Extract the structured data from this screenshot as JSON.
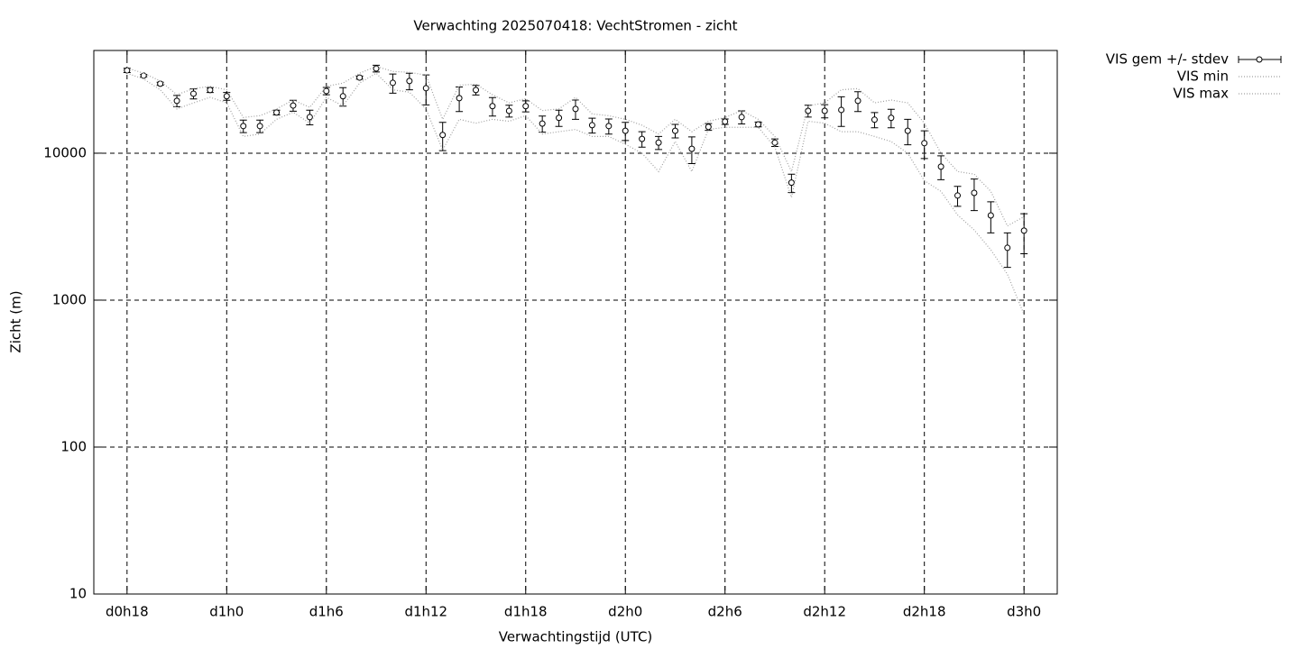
{
  "chart_data": {
    "type": "errorbar",
    "title": "Verwachting 2025070418: VechtStromen - zicht",
    "xlabel": "Verwachtingstijd (UTC)",
    "ylabel": "Zicht (m)",
    "log_y": true,
    "grid": true,
    "legend": "outside-top-right",
    "x": [
      18,
      19,
      20,
      21,
      22,
      23,
      24,
      25,
      26,
      27,
      28,
      29,
      30,
      31,
      32,
      33,
      34,
      35,
      36,
      37,
      38,
      39,
      40,
      41,
      42,
      43,
      44,
      45,
      46,
      47,
      48,
      49,
      50,
      51,
      52,
      53,
      54,
      55,
      56,
      57,
      58,
      59,
      60,
      61,
      62,
      63,
      64,
      65,
      66,
      67,
      68,
      69,
      70,
      71,
      72
    ],
    "xlim": [
      16,
      74
    ],
    "xticks": [
      {
        "value": 18,
        "label": "d0h18"
      },
      {
        "value": 24,
        "label": "d1h0"
      },
      {
        "value": 30,
        "label": "d1h6"
      },
      {
        "value": 36,
        "label": "d1h12"
      },
      {
        "value": 42,
        "label": "d1h18"
      },
      {
        "value": 48,
        "label": "d2h0"
      },
      {
        "value": 54,
        "label": "d2h6"
      },
      {
        "value": 60,
        "label": "d2h12"
      },
      {
        "value": 66,
        "label": "d2h18"
      },
      {
        "value": 72,
        "label": "d3h0"
      }
    ],
    "ylim": [
      10,
      50000
    ],
    "yticks": [
      10,
      100,
      1000,
      10000
    ],
    "series": [
      {
        "name": "VIS gem +/- stdev",
        "color": "#000000",
        "style": "errorbar",
        "values": [
          36600,
          33700,
          29700,
          22700,
          25400,
          26900,
          24400,
          15300,
          15300,
          18900,
          21100,
          17600,
          26500,
          24400,
          32700,
          37700,
          30100,
          31000,
          27700,
          13300,
          23700,
          26900,
          20900,
          19400,
          20900,
          15900,
          17400,
          20000,
          15500,
          15300,
          14200,
          12500,
          11800,
          14200,
          10700,
          15100,
          16400,
          17600,
          15700,
          11800,
          6300,
          19400,
          19400,
          19700,
          22700,
          16900,
          17400,
          14200,
          11700,
          8100,
          5150,
          5370,
          3770,
          2270,
          2970
        ],
        "errors": [
          1200,
          600,
          700,
          2000,
          2000,
          1000,
          1500,
          1500,
          1500,
          700,
          1800,
          2000,
          1500,
          3500,
          800,
          2000,
          4500,
          4000,
          6400,
          2900,
          4500,
          2000,
          3000,
          1800,
          1800,
          2000,
          2200,
          3000,
          1800,
          1800,
          2000,
          1500,
          1200,
          1500,
          2200,
          800,
          700,
          1800,
          600,
          700,
          900,
          1800,
          2000,
          4500,
          3500,
          2000,
          2500,
          2800,
          2500,
          1500,
          800,
          1300,
          900,
          600,
          900
        ]
      },
      {
        "name": "VIS min",
        "color": "#a0a0a0",
        "style": "dotted",
        "values": [
          35000,
          32000,
          27000,
          20000,
          22000,
          24000,
          22000,
          13000,
          13500,
          17000,
          19000,
          16000,
          24000,
          21000,
          30000,
          35000,
          27000,
          26000,
          20000,
          10500,
          17000,
          16000,
          17000,
          16500,
          18000,
          13500,
          14000,
          14500,
          13000,
          13000,
          11500,
          10000,
          7500,
          12000,
          7500,
          14500,
          15000,
          15000,
          15000,
          11000,
          5000,
          16500,
          16000,
          14000,
          14000,
          13000,
          12000,
          10000,
          6500,
          5500,
          3800,
          3000,
          2200,
          1500,
          800
        ]
      },
      {
        "name": "VIS max",
        "color": "#a0a0a0",
        "style": "dotted",
        "values": [
          38000,
          35000,
          31000,
          25000,
          27500,
          28500,
          27000,
          17500,
          18000,
          20000,
          23000,
          20500,
          28500,
          30000,
          35000,
          39000,
          36000,
          35500,
          34000,
          17000,
          29000,
          29500,
          25000,
          22000,
          23500,
          19500,
          20000,
          24000,
          18500,
          18000,
          17000,
          15500,
          13500,
          17000,
          14000,
          16500,
          17500,
          19500,
          17000,
          13000,
          7500,
          21000,
          22000,
          27000,
          27500,
          22000,
          23000,
          22000,
          16000,
          10000,
          7500,
          7200,
          5500,
          3200,
          3700
        ]
      }
    ]
  }
}
